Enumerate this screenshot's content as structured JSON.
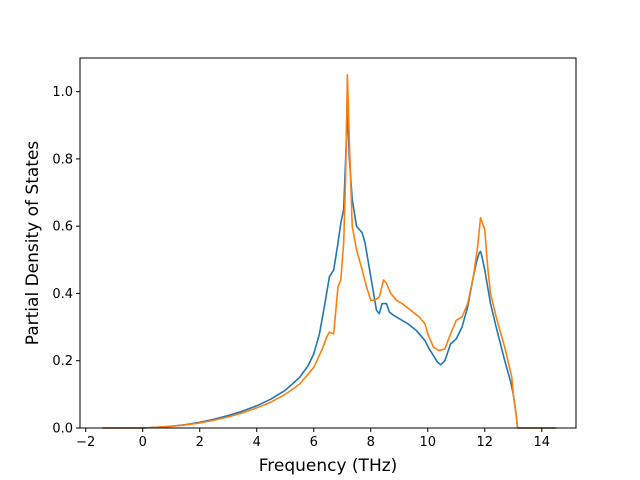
{
  "chart_data": {
    "type": "line",
    "title": "",
    "xlabel": "Frequency (THz)",
    "ylabel": "Partial Density of States",
    "xlim": [
      -2.2,
      15.2
    ],
    "ylim": [
      0.0,
      1.1
    ],
    "x_ticks": [
      -2,
      0,
      2,
      4,
      6,
      8,
      10,
      12,
      14
    ],
    "x_tick_labels": [
      "−2",
      "0",
      "2",
      "4",
      "6",
      "8",
      "10",
      "12",
      "14"
    ],
    "y_ticks": [
      0.0,
      0.2,
      0.4,
      0.6,
      0.8,
      1.0
    ],
    "y_tick_labels": [
      "0.0",
      "0.2",
      "0.4",
      "0.6",
      "0.8",
      "1.0"
    ],
    "grid": false,
    "legend": "none",
    "series": [
      {
        "color": "#1f77b4",
        "x": [
          -1.4,
          -0.5,
          0.0,
          0.5,
          1.0,
          1.5,
          2.0,
          2.5,
          3.0,
          3.5,
          4.0,
          4.5,
          5.0,
          5.5,
          5.8,
          6.0,
          6.2,
          6.35,
          6.45,
          6.55,
          6.7,
          6.85,
          6.95,
          7.05,
          7.12,
          7.18,
          7.25,
          7.35,
          7.5,
          7.7,
          7.8,
          7.9,
          8.0,
          8.1,
          8.2,
          8.3,
          8.4,
          8.55,
          8.65,
          8.8,
          9.0,
          9.3,
          9.6,
          9.9,
          10.05,
          10.2,
          10.35,
          10.45,
          10.6,
          10.8,
          11.0,
          11.2,
          11.4,
          11.6,
          11.7,
          11.8,
          11.85,
          11.9,
          12.0,
          12.1,
          12.2,
          12.4,
          12.7,
          12.9,
          13.0,
          13.1,
          13.15,
          13.5,
          14.0,
          14.5
        ],
        "y": [
          0.0,
          0.0,
          0.0,
          0.002,
          0.005,
          0.01,
          0.017,
          0.026,
          0.037,
          0.05,
          0.066,
          0.086,
          0.112,
          0.15,
          0.185,
          0.22,
          0.28,
          0.35,
          0.4,
          0.45,
          0.47,
          0.55,
          0.61,
          0.65,
          0.8,
          0.95,
          0.8,
          0.68,
          0.6,
          0.58,
          0.55,
          0.5,
          0.45,
          0.4,
          0.35,
          0.34,
          0.37,
          0.37,
          0.345,
          0.335,
          0.325,
          0.31,
          0.29,
          0.26,
          0.235,
          0.215,
          0.195,
          0.188,
          0.2,
          0.25,
          0.265,
          0.3,
          0.36,
          0.45,
          0.49,
          0.52,
          0.525,
          0.51,
          0.47,
          0.42,
          0.37,
          0.3,
          0.2,
          0.14,
          0.1,
          0.04,
          0.0,
          0.0,
          0.0,
          0.0
        ]
      },
      {
        "color": "#ff7f0e",
        "x": [
          -1.4,
          -0.5,
          0.0,
          0.5,
          1.0,
          1.5,
          2.0,
          2.5,
          3.0,
          3.5,
          4.0,
          4.5,
          5.0,
          5.5,
          6.0,
          6.3,
          6.45,
          6.55,
          6.7,
          6.85,
          6.95,
          7.05,
          7.12,
          7.18,
          7.25,
          7.35,
          7.5,
          7.7,
          7.85,
          8.0,
          8.15,
          8.3,
          8.45,
          8.55,
          8.7,
          8.9,
          9.1,
          9.4,
          9.7,
          9.9,
          10.0,
          10.2,
          10.4,
          10.6,
          10.8,
          10.9,
          11.0,
          11.2,
          11.4,
          11.6,
          11.75,
          11.85,
          12.0,
          12.1,
          12.2,
          12.4,
          12.7,
          12.95,
          13.0,
          13.1,
          13.15,
          13.5,
          14.0,
          14.5
        ],
        "y": [
          0.0,
          0.0,
          0.0,
          0.002,
          0.005,
          0.009,
          0.015,
          0.023,
          0.033,
          0.045,
          0.06,
          0.077,
          0.1,
          0.13,
          0.18,
          0.235,
          0.27,
          0.285,
          0.28,
          0.42,
          0.44,
          0.55,
          0.75,
          1.05,
          0.85,
          0.6,
          0.53,
          0.47,
          0.42,
          0.38,
          0.38,
          0.39,
          0.44,
          0.43,
          0.4,
          0.38,
          0.37,
          0.35,
          0.33,
          0.31,
          0.28,
          0.24,
          0.23,
          0.235,
          0.28,
          0.3,
          0.32,
          0.33,
          0.37,
          0.45,
          0.54,
          0.625,
          0.59,
          0.48,
          0.4,
          0.33,
          0.24,
          0.15,
          0.1,
          0.04,
          0.0,
          0.0,
          0.0,
          0.0
        ]
      }
    ]
  }
}
